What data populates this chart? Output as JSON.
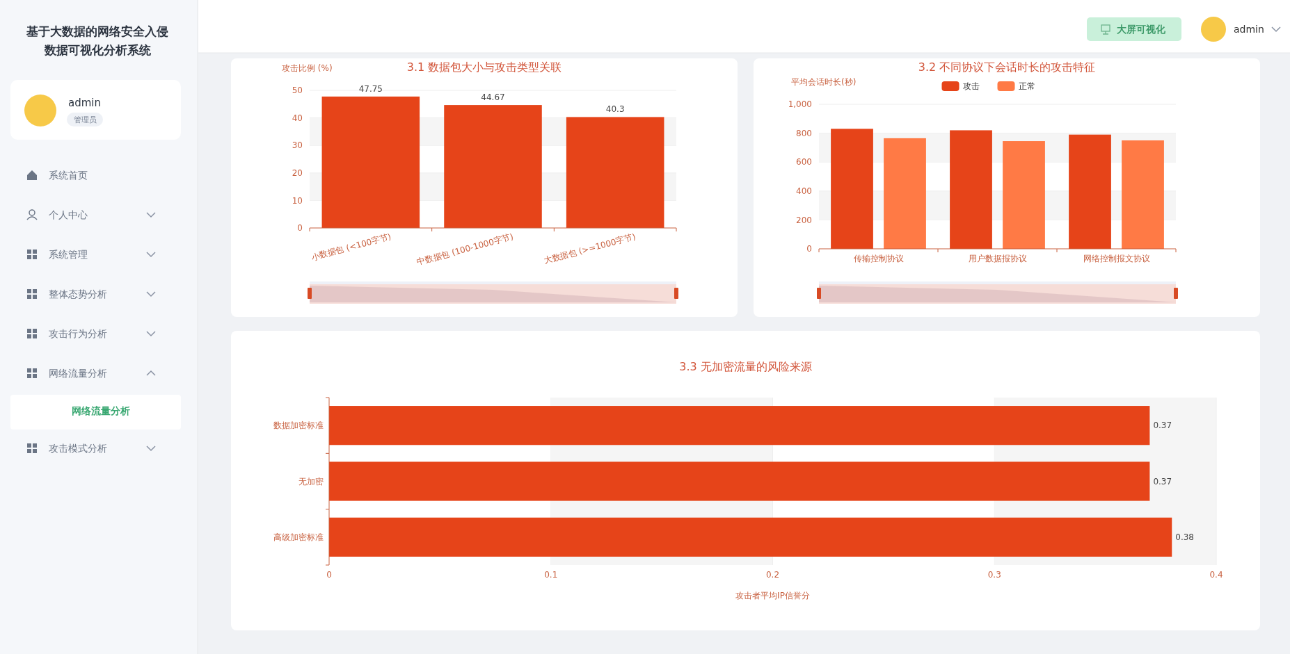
{
  "chart_data": [
    {
      "type": "other",
      "title": "基于大数据的网络安全入侵数据可视化分析系统",
      "annotations": [
        "admin",
        "管理员",
        "系统首页",
        "个人中心",
        "系统管理",
        "整体态势分析",
        "攻击行为分析",
        "网络流量分析",
        "网络流量分析",
        "攻击模式分析",
        "大屏可视化",
        "admin"
      ]
    },
    {
      "type": "bar",
      "title": "3.1 数据包大小与攻击类型关联",
      "ylabel": "攻击比例 (%)",
      "categories": [
        "小数据包 (<100字节)",
        "中数据包 (100-1000字节)",
        "大数据包 (>=1000字节)"
      ],
      "values": [
        47.75,
        44.67,
        40.3
      ],
      "color": "#e64419",
      "ylim": [
        0,
        50
      ],
      "yticks": [
        0,
        10,
        20,
        30,
        40,
        50
      ],
      "grid": "y",
      "data_labels": true
    },
    {
      "type": "bar",
      "title": "3.2 不同协议下会话时长的攻击特征",
      "ylabel": "平均会话时长(秒)",
      "categories": [
        "传输控制协议",
        "用户数据报协议",
        "网络控制报文协议"
      ],
      "series": [
        {
          "name": "攻击",
          "color": "#e64419",
          "values": [
            830,
            820,
            790
          ]
        },
        {
          "name": "正常",
          "color": "#ff7a45",
          "values": [
            765,
            745,
            750
          ]
        }
      ],
      "ylim": [
        0,
        1000
      ],
      "yticks": [
        0,
        200,
        400,
        600,
        800,
        {
          "value": 1000,
          "label": "1,000"
        }
      ],
      "grid": "y",
      "legend": "top"
    },
    {
      "type": "bar",
      "orientation": "horizontal",
      "title": "3.3 无加密流量的风险来源",
      "xlabel": "攻击者平均IP信誉分",
      "categories": [
        "数据加密标准",
        "无加密",
        "高级加密标准"
      ],
      "values": [
        0.37,
        0.37,
        0.38
      ],
      "color": "#e64419",
      "xlim": [
        0,
        0.4
      ],
      "xticks": [
        0,
        0.1,
        0.2,
        0.3,
        0.4
      ],
      "grid": "x",
      "data_labels": true
    }
  ]
}
